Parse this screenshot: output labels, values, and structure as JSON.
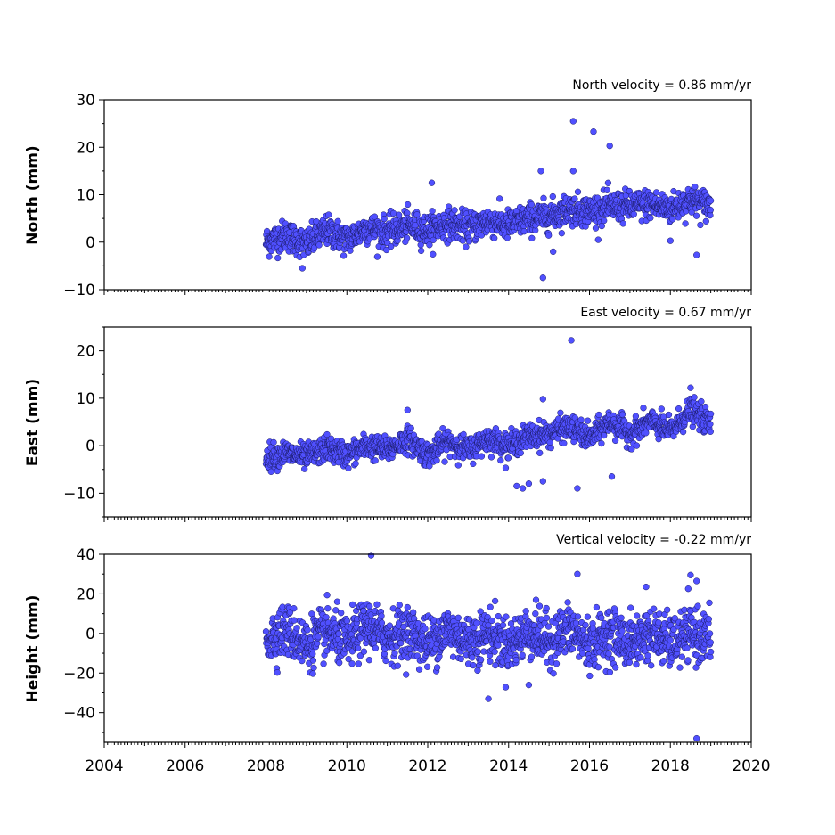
{
  "chart_data": [
    {
      "type": "scatter",
      "title": "North velocity = 0.86 mm/yr",
      "xlabel": "",
      "ylabel": "North (mm)",
      "xlim": [
        2004,
        2020
      ],
      "ylim": [
        -10,
        30
      ],
      "xticks": [
        "2004",
        "2006",
        "2008",
        "2010",
        "2012",
        "2014",
        "2016",
        "2018",
        "2020"
      ],
      "yticks": [
        "30",
        "20",
        "10",
        "0",
        "−10"
      ],
      "x_tick_labels_shown": false,
      "grid": false,
      "series": [
        {
          "x": [
            2008.0,
            2008.5,
            2009.0,
            2009.5,
            2010.0,
            2010.5,
            2011.0,
            2011.5,
            2012.0,
            2012.5,
            2013.0,
            2013.5,
            2014.0,
            2014.5,
            2015.0,
            2015.5,
            2016.0,
            2016.5,
            2017.0,
            2017.5,
            2018.0,
            2018.5,
            2019.0
          ],
          "y": [
            0.0,
            1.5,
            -0.5,
            2.5,
            0.5,
            3.0,
            2.0,
            3.5,
            2.5,
            4.0,
            3.0,
            4.5,
            3.5,
            5.0,
            5.5,
            7.0,
            6.5,
            7.5,
            7.5,
            8.0,
            7.0,
            9.0,
            7.5
          ],
          "outliers": [
            [
              2008.9,
              -5.5
            ],
            [
              2012.1,
              12.5
            ],
            [
              2014.8,
              15.0
            ],
            [
              2014.85,
              -7.5
            ],
            [
              2015.1,
              -2.0
            ],
            [
              2015.6,
              25.5
            ],
            [
              2015.6,
              15.0
            ],
            [
              2016.1,
              23.3
            ],
            [
              2016.5,
              20.3
            ],
            [
              2018.0,
              0.3
            ],
            [
              2018.65,
              -2.7
            ]
          ],
          "noise": 1.6,
          "count": 1400
        }
      ]
    },
    {
      "type": "scatter",
      "title": "East velocity = 0.67 mm/yr",
      "xlabel": "",
      "ylabel": "East (mm)",
      "xlim": [
        2004,
        2020
      ],
      "ylim": [
        -15,
        25
      ],
      "xticks": [
        "2004",
        "2006",
        "2008",
        "2010",
        "2012",
        "2014",
        "2016",
        "2018",
        "2020"
      ],
      "yticks": [
        "20",
        "10",
        "0",
        "−10"
      ],
      "x_tick_labels_shown": false,
      "grid": false,
      "series": [
        {
          "x": [
            2008.0,
            2008.5,
            2009.0,
            2009.5,
            2010.0,
            2010.5,
            2011.0,
            2011.5,
            2012.0,
            2012.5,
            2013.0,
            2013.5,
            2014.0,
            2014.5,
            2015.0,
            2015.5,
            2016.0,
            2016.5,
            2017.0,
            2017.5,
            2018.0,
            2018.5,
            2019.0
          ],
          "y": [
            -2.5,
            -1.5,
            -2.5,
            -0.5,
            -2.0,
            0.0,
            -1.0,
            1.5,
            -2.0,
            1.0,
            -1.0,
            1.5,
            0.0,
            2.0,
            2.5,
            4.0,
            1.5,
            5.0,
            2.5,
            5.0,
            3.0,
            7.5,
            4.5
          ],
          "outliers": [
            [
              2011.5,
              7.5
            ],
            [
              2014.2,
              -8.5
            ],
            [
              2014.35,
              -9.0
            ],
            [
              2014.5,
              -8.0
            ],
            [
              2014.85,
              -7.5
            ],
            [
              2014.85,
              9.8
            ],
            [
              2015.55,
              22.2
            ],
            [
              2015.7,
              -9.0
            ],
            [
              2016.55,
              -6.5
            ],
            [
              2018.5,
              12.2
            ]
          ],
          "noise": 1.3,
          "count": 1400
        }
      ]
    },
    {
      "type": "scatter",
      "title": "Vertical velocity = -0.22 mm/yr",
      "xlabel": "",
      "ylabel": "Height (mm)",
      "xlim": [
        2004,
        2020
      ],
      "ylim": [
        -55,
        40
      ],
      "xticks": [
        "2004",
        "2006",
        "2008",
        "2010",
        "2012",
        "2014",
        "2016",
        "2018",
        "2020"
      ],
      "yticks": [
        "40",
        "20",
        "0",
        "−20",
        "−40"
      ],
      "x_tick_labels_shown": true,
      "grid": false,
      "series": [
        {
          "x": [
            2008.0,
            2008.5,
            2009.0,
            2009.5,
            2010.0,
            2010.5,
            2011.0,
            2011.5,
            2012.0,
            2012.5,
            2013.0,
            2013.5,
            2014.0,
            2014.5,
            2015.0,
            2015.5,
            2016.0,
            2016.5,
            2017.0,
            2017.5,
            2018.0,
            2018.5,
            2019.0
          ],
          "y": [
            -3.0,
            2.0,
            -6.0,
            1.0,
            -5.0,
            4.0,
            -2.0,
            1.0,
            -5.0,
            2.0,
            -4.0,
            0.0,
            -6.0,
            1.0,
            -4.0,
            2.0,
            -6.0,
            0.0,
            -5.0,
            0.0,
            -5.0,
            0.0,
            -3.0
          ],
          "outliers": [
            [
              2010.6,
              39.5
            ],
            [
              2013.5,
              -33.0
            ],
            [
              2014.5,
              -26.0
            ],
            [
              2015.7,
              30.0
            ],
            [
              2017.4,
              23.5
            ],
            [
              2018.5,
              29.5
            ],
            [
              2018.65,
              26.5
            ],
            [
              2018.65,
              -53.0
            ]
          ],
          "noise": 6.5,
          "count": 1500
        }
      ]
    }
  ],
  "style": {
    "marker_fill": "#5050ff",
    "marker_edge": "#1a1a66",
    "axis_color": "#000000"
  }
}
